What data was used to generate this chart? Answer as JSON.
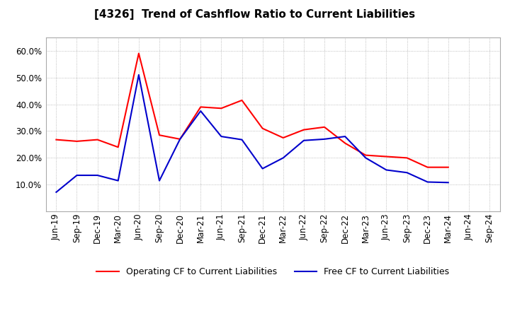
{
  "title": "[4326]  Trend of Cashflow Ratio to Current Liabilities",
  "x_labels": [
    "Jun-19",
    "Sep-19",
    "Dec-19",
    "Mar-20",
    "Jun-20",
    "Sep-20",
    "Dec-20",
    "Mar-21",
    "Jun-21",
    "Sep-21",
    "Dec-21",
    "Mar-22",
    "Jun-22",
    "Sep-22",
    "Dec-22",
    "Mar-23",
    "Jun-23",
    "Sep-23",
    "Dec-23",
    "Mar-24",
    "Jun-24",
    "Sep-24"
  ],
  "operating_cf": [
    0.268,
    0.262,
    0.268,
    0.24,
    0.59,
    0.285,
    0.27,
    0.39,
    0.385,
    0.415,
    0.31,
    0.275,
    0.305,
    0.315,
    0.255,
    0.21,
    0.205,
    0.2,
    0.165,
    0.165,
    null,
    null
  ],
  "free_cf": [
    0.072,
    0.135,
    0.135,
    0.115,
    0.51,
    0.115,
    0.27,
    0.375,
    0.28,
    0.268,
    0.16,
    0.2,
    0.265,
    0.27,
    0.28,
    0.2,
    0.155,
    0.145,
    0.11,
    0.108,
    null,
    null
  ],
  "operating_color": "#ff0000",
  "free_color": "#0000cc",
  "ylim": [
    0.0,
    0.65
  ],
  "yticks": [
    0.1,
    0.2,
    0.3,
    0.4,
    0.5,
    0.6
  ],
  "background_color": "#ffffff",
  "grid_color": "#888888",
  "legend_op": "Operating CF to Current Liabilities",
  "legend_free": "Free CF to Current Liabilities",
  "title_fontsize": 11,
  "tick_fontsize": 8.5
}
